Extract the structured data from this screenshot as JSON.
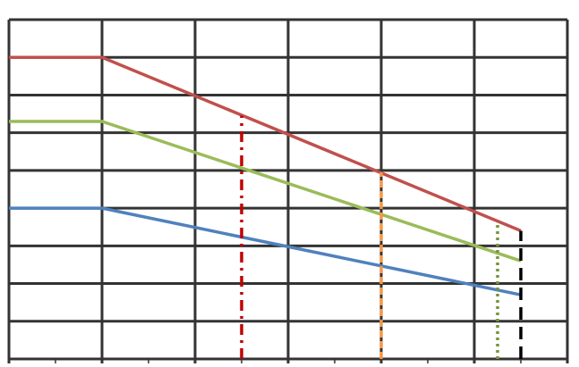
{
  "chart_data": {
    "type": "line",
    "xlim": [
      0,
      6
    ],
    "ylim": [
      0,
      9
    ],
    "xticks": [
      0,
      1,
      2,
      3,
      4,
      5,
      6
    ],
    "yticks": [
      0,
      1,
      2,
      3,
      4,
      5,
      6,
      7,
      8,
      9
    ],
    "grid": true,
    "grid_color": "#333333",
    "x": [
      0,
      1,
      5.5
    ],
    "series": [
      {
        "color": "#c0504d",
        "values": [
          8.0,
          8.0,
          3.4
        ]
      },
      {
        "color": "#9bbb59",
        "values": [
          6.3,
          6.3,
          2.6
        ]
      },
      {
        "color": "#4f81bd",
        "values": [
          4.0,
          4.0,
          1.7
        ]
      }
    ],
    "vlines": [
      {
        "x": 2.5,
        "top": 6.45,
        "color": "#c00000",
        "dash": "dashdot"
      },
      {
        "x": 4.0,
        "top": 4.95,
        "color": "#f79646",
        "dash": "dash"
      },
      {
        "x": 5.25,
        "top": 3.65,
        "color": "#77933c",
        "dash": "dot"
      },
      {
        "x": 5.5,
        "top": 3.4,
        "color": "#000000",
        "dash": "longdash"
      }
    ]
  }
}
